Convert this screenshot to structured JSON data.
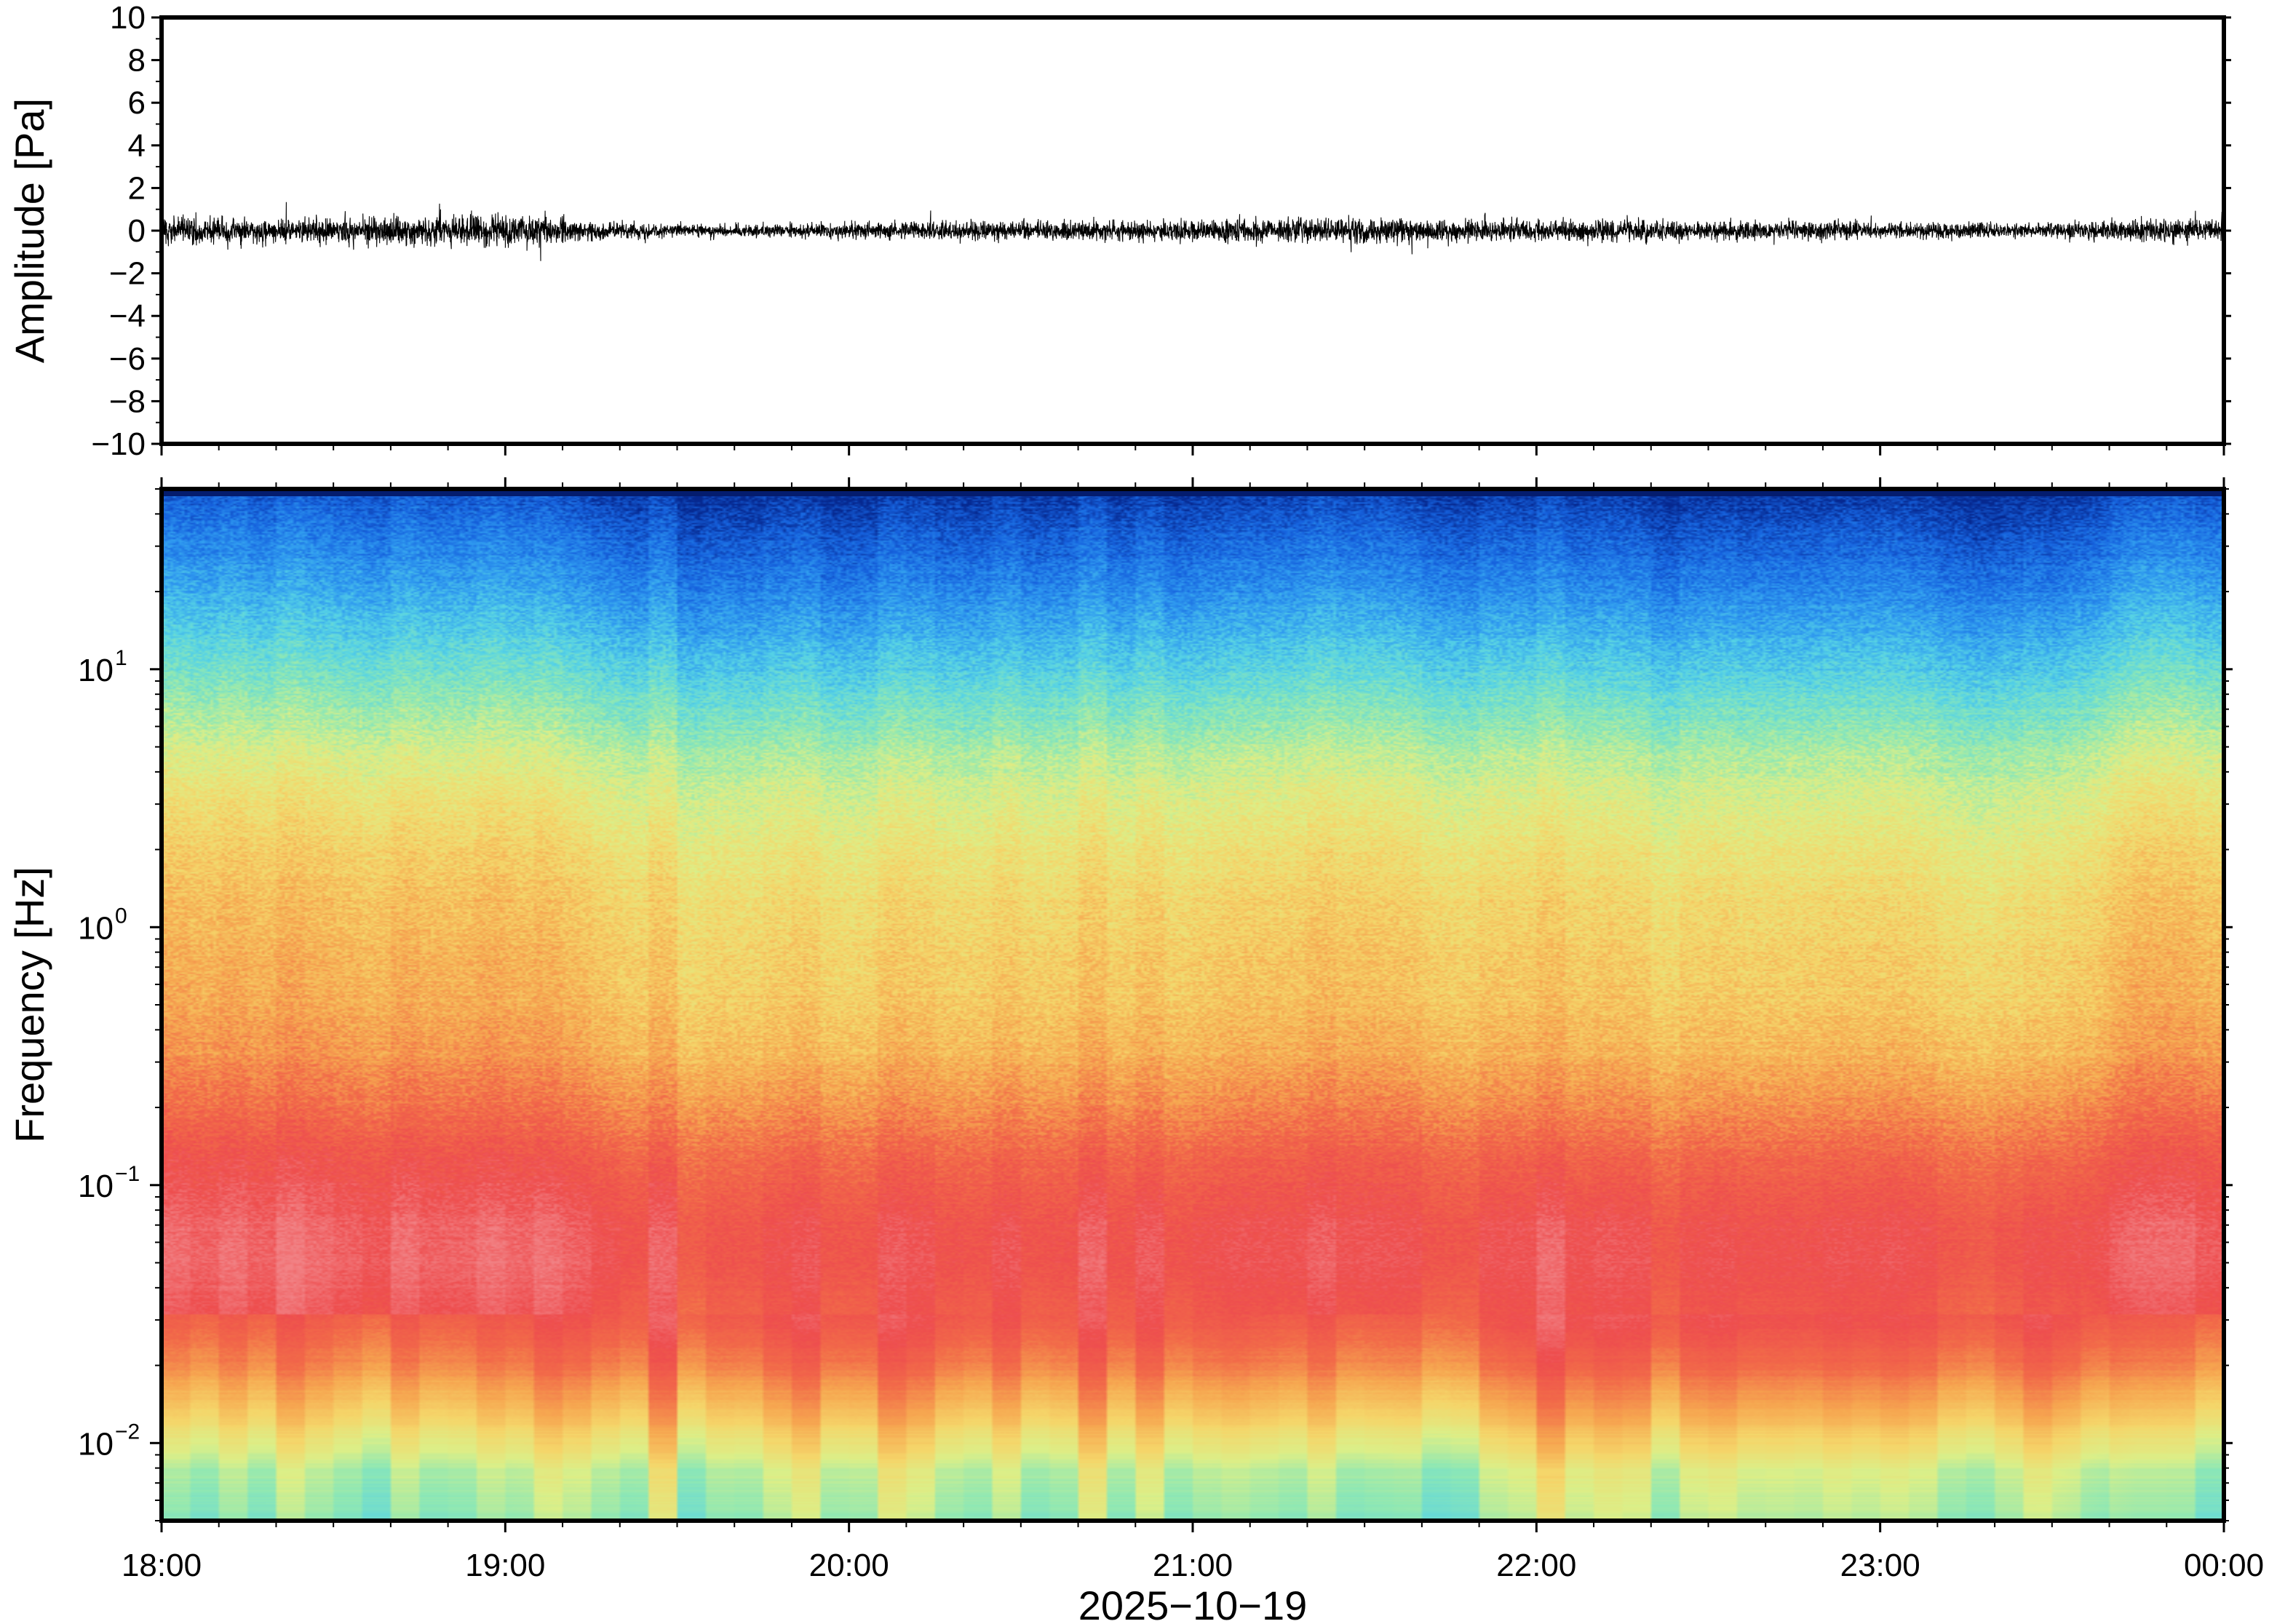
{
  "chart_data": [
    {
      "type": "line",
      "panel": "waveform",
      "ylabel": "Amplitude [Pa]",
      "ylim": [
        -10,
        10
      ],
      "yticks": [
        10,
        8,
        6,
        4,
        2,
        0,
        -2,
        -4,
        -6,
        -8,
        -10
      ],
      "ytick_labels": [
        "10",
        "8",
        "6",
        "4",
        "2",
        "0",
        "−2",
        "−4",
        "−6",
        "−8",
        "−10"
      ],
      "x_range": [
        "18:00",
        "00:00"
      ],
      "series_color": "#000000",
      "envelope": {
        "x_hours": [
          18.0,
          18.25,
          18.5,
          18.75,
          19.0,
          19.17,
          19.25,
          19.5,
          19.75,
          20.0,
          20.25,
          20.5,
          20.75,
          21.0,
          21.25,
          21.5,
          21.75,
          22.0,
          22.25,
          22.5,
          22.75,
          23.0,
          23.25,
          23.5,
          23.75,
          24.0
        ],
        "half_width_pa": [
          1.1,
          1.0,
          1.0,
          1.1,
          1.2,
          1.0,
          0.6,
          0.5,
          0.5,
          0.6,
          0.7,
          0.7,
          0.7,
          0.8,
          0.9,
          1.0,
          0.9,
          0.8,
          0.8,
          0.7,
          0.7,
          0.6,
          0.6,
          0.5,
          0.9,
          0.8
        ]
      }
    },
    {
      "type": "heatmap",
      "panel": "spectrogram",
      "ylabel": "Frequency [Hz]",
      "xlabel": "2025−10−19",
      "yscale": "log",
      "ylim_hz": [
        0.005,
        50
      ],
      "yticks": [
        {
          "base": "10",
          "exp": "1"
        },
        {
          "base": "10",
          "exp": "0"
        },
        {
          "base": "10",
          "exp": "−1"
        },
        {
          "base": "10",
          "exp": "−2"
        }
      ],
      "x_tick_labels": [
        "18:00",
        "19:00",
        "20:00",
        "21:00",
        "22:00",
        "23:00",
        "00:00"
      ],
      "colormap": [
        "#06288f",
        "#1662de",
        "#2f9af0",
        "#56d3e6",
        "#8fe8b4",
        "#dcef88",
        "#f5d66a",
        "#f6a650",
        "#f26b49",
        "#ee4d4e",
        "#f28285"
      ],
      "color_min": 0,
      "color_max": 10,
      "color_mean_profile": {
        "log10_freq": [
          -2.3,
          -2.1,
          -1.9,
          -1.7,
          -1.5,
          -1.3,
          -1.1,
          -0.9,
          -0.7,
          -0.5,
          -0.3,
          -0.1,
          0.1,
          0.3,
          0.5,
          0.7,
          0.9,
          1.1,
          1.3,
          1.5,
          1.7
        ],
        "value": [
          4.2,
          4.8,
          6.4,
          7.8,
          8.8,
          9.2,
          9.0,
          8.4,
          7.6,
          6.9,
          6.5,
          6.3,
          6.1,
          5.7,
          5.2,
          4.5,
          3.6,
          2.7,
          1.9,
          1.2,
          0.4
        ]
      },
      "time_activity_hours": [
        18.0,
        18.5,
        19.0,
        19.2,
        19.5,
        20.0,
        20.5,
        21.0,
        21.5,
        22.0,
        22.5,
        23.0,
        23.5,
        23.75,
        24.0
      ],
      "time_activity_offset": [
        0.5,
        0.4,
        0.4,
        0.1,
        -0.2,
        -0.3,
        -0.1,
        -0.1,
        0.2,
        -0.2,
        -0.3,
        -0.2,
        -0.4,
        0.4,
        0.4
      ]
    }
  ]
}
